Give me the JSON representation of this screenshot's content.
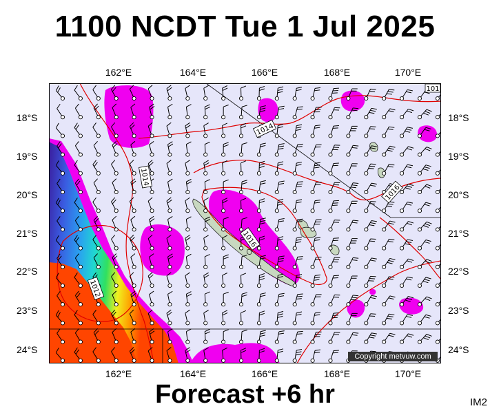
{
  "title": "1100 NCDT Tue 1 Jul 2025",
  "footer": "Forecast +6 hr",
  "image_code": "IM2",
  "copyright": "Copyright metvuw.com",
  "longitude_labels": [
    "162°E",
    "164°E",
    "166°E",
    "168°E",
    "170°E"
  ],
  "latitude_labels": [
    "18°S",
    "19°S",
    "20°S",
    "21°S",
    "22°S",
    "23°S",
    "24°S"
  ],
  "isobar_labels": [
    "1014",
    "1014",
    "1016",
    "1016",
    "1012",
    "101"
  ],
  "colors": {
    "background": "#e6e6fa",
    "isobar": "#e00000",
    "rain_light": "#f000f0",
    "rain_heavy": "#ff4500",
    "land": "#c8d8c0"
  }
}
